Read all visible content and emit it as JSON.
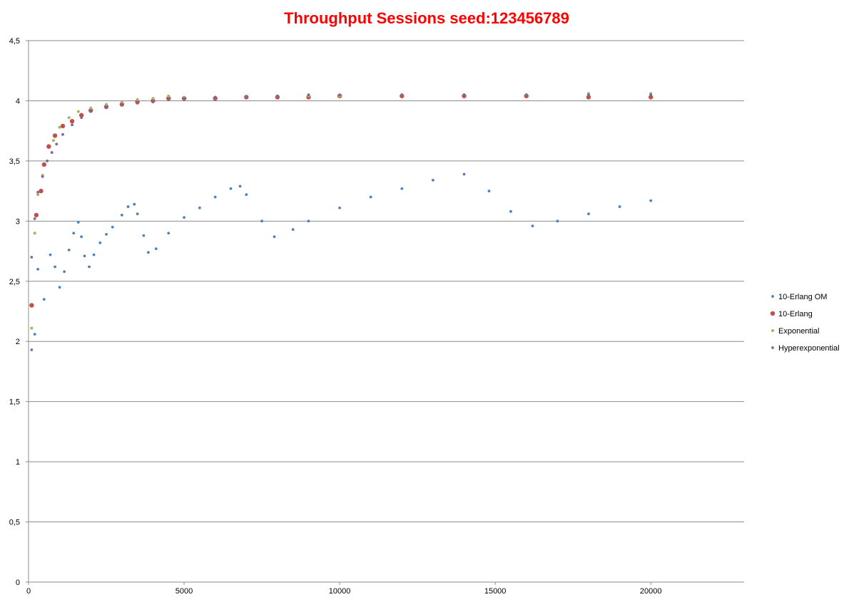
{
  "chart_data": {
    "type": "scatter",
    "title": "Throughput Sessions seed:123456789",
    "title_color": "#ff0000",
    "xlabel": "",
    "ylabel": "",
    "xlim": [
      0,
      23000
    ],
    "ylim": [
      0,
      4.5
    ],
    "x_ticks": [
      0,
      5000,
      10000,
      15000,
      20000
    ],
    "x_tick_labels": [
      "0",
      "5000",
      "10000",
      "15000",
      "20000"
    ],
    "y_ticks": [
      0,
      0.5,
      1,
      1.5,
      2,
      2.5,
      3,
      3.5,
      4,
      4.5
    ],
    "y_tick_labels": [
      "0",
      "0,5",
      "1",
      "1,5",
      "2",
      "2,5",
      "3",
      "3,5",
      "4",
      "4,5"
    ],
    "grid": "horizontal",
    "legend_position": "right",
    "series": [
      {
        "name": "10-Erlang OM",
        "color": "#4f81bd",
        "x": [
          100,
          200,
          300,
          500,
          700,
          850,
          1000,
          1150,
          1300,
          1450,
          1600,
          1700,
          1800,
          1950,
          2100,
          2300,
          2500,
          2700,
          3000,
          3200,
          3400,
          3500,
          3700,
          3850,
          4100,
          4500,
          5000,
          5500,
          6000,
          6500,
          6800,
          7000,
          7500,
          7900,
          8500,
          9000,
          10000,
          11000,
          12000,
          13000,
          14000,
          14800,
          15500,
          16200,
          17000,
          18000,
          19000,
          20000
        ],
        "values": [
          1.93,
          2.06,
          2.6,
          2.35,
          2.72,
          2.62,
          2.45,
          2.58,
          2.76,
          2.9,
          2.99,
          2.87,
          2.71,
          2.62,
          2.72,
          2.82,
          2.89,
          2.95,
          3.05,
          3.12,
          3.14,
          3.06,
          2.88,
          2.74,
          2.77,
          2.9,
          3.03,
          3.11,
          3.2,
          3.27,
          3.29,
          3.22,
          3.0,
          2.87,
          2.93,
          3.0,
          3.11,
          3.2,
          3.27,
          3.34,
          3.39,
          3.25,
          3.08,
          2.96,
          3.0,
          3.06,
          3.12,
          3.17
        ]
      },
      {
        "name": "10-Erlang",
        "color": "#c0504d",
        "x": [
          100,
          250,
          400,
          500,
          650,
          850,
          1100,
          1400,
          1700,
          2000,
          2500,
          3000,
          3500,
          4000,
          4500,
          5000,
          6000,
          7000,
          8000,
          9000,
          10000,
          12000,
          14000,
          16000,
          18000,
          20000
        ],
        "values": [
          2.3,
          3.05,
          3.25,
          3.47,
          3.62,
          3.71,
          3.79,
          3.83,
          3.88,
          3.92,
          3.95,
          3.97,
          3.99,
          4.0,
          4.02,
          4.02,
          4.02,
          4.03,
          4.03,
          4.03,
          4.04,
          4.04,
          4.04,
          4.04,
          4.03,
          4.03
        ]
      },
      {
        "name": "Exponential",
        "color": "#9bbb59",
        "x": [
          100,
          200,
          300,
          450,
          600,
          800,
          1000,
          1300,
          1600,
          2000,
          2500,
          3000,
          3500,
          4000,
          4500,
          5000,
          6000,
          7000,
          8000,
          9000,
          10000,
          12000,
          14000,
          16000,
          18000,
          20000
        ],
        "values": [
          2.11,
          2.9,
          3.22,
          3.38,
          3.5,
          3.67,
          3.78,
          3.86,
          3.91,
          3.94,
          3.97,
          3.99,
          4.01,
          4.02,
          4.04,
          4.03,
          4.03,
          4.03,
          4.04,
          4.04,
          4.04,
          4.05,
          4.05,
          4.05,
          4.06,
          4.06
        ]
      },
      {
        "name": "Hyperexponential",
        "color": "#8064a2",
        "x": [
          100,
          200,
          300,
          450,
          600,
          750,
          900,
          1100,
          1400,
          1700,
          2000,
          2500,
          3000,
          3500,
          4000,
          4500,
          5000,
          6000,
          7000,
          8000,
          9000,
          10000,
          12000,
          14000,
          16000,
          18000,
          20000
        ],
        "values": [
          2.7,
          3.02,
          3.24,
          3.37,
          3.5,
          3.57,
          3.64,
          3.72,
          3.8,
          3.86,
          3.91,
          3.95,
          3.97,
          3.98,
          3.99,
          4.01,
          4.02,
          4.03,
          4.03,
          4.04,
          4.05,
          4.05,
          4.05,
          4.05,
          4.05,
          4.05,
          4.05
        ]
      }
    ]
  }
}
